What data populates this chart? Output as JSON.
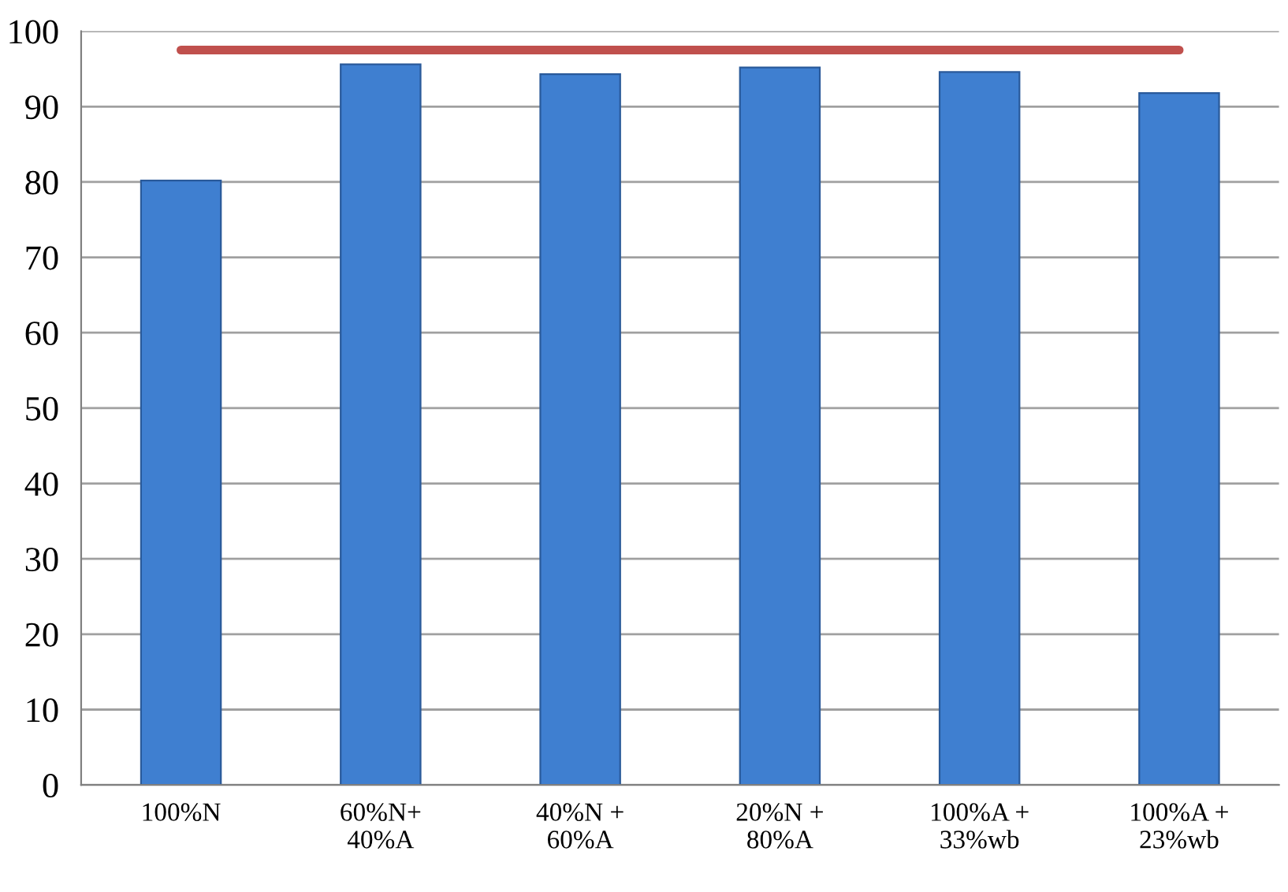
{
  "chart_data": {
    "type": "bar",
    "categories": [
      "100%N",
      "60%N+\n40%A",
      "40%N +\n60%A",
      "20%N +\n80%A",
      "100%A +\n33%wb",
      "100%A +\n23%wb"
    ],
    "series": [
      {
        "color": "#3f7fd0",
        "values": [
          80.2,
          95.6,
          94.3,
          95.2,
          94.6,
          91.8
        ]
      },
      {
        "type": "line",
        "color": "#c0504d",
        "values": [
          97.5,
          97.5,
          97.5,
          97.5,
          97.5,
          97.5
        ]
      }
    ],
    "ylim": [
      0,
      100
    ],
    "yticks": [
      0,
      10,
      20,
      30,
      40,
      50,
      60,
      70,
      80,
      90,
      100
    ],
    "grid": "y",
    "legend": false,
    "marker": "none"
  }
}
